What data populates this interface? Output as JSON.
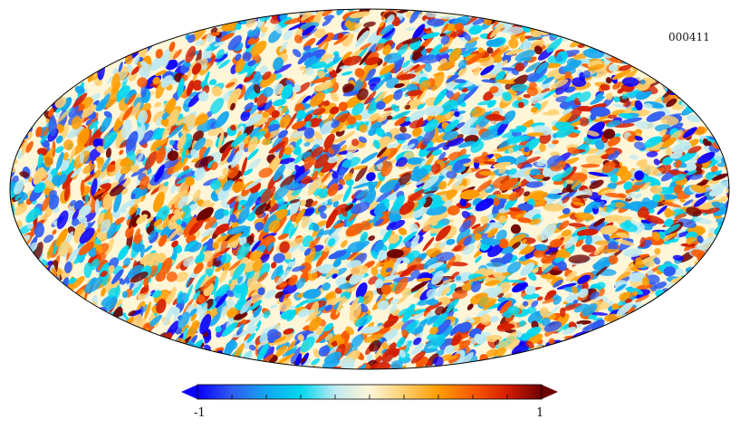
{
  "map": {
    "id_label": "000411",
    "projection": "mollweide",
    "colormap": "planck",
    "colormap_stops": [
      "#0a00ff",
      "#2f5cf2",
      "#14a6f0",
      "#00d7ef",
      "#bfe9f0",
      "#fff6d8",
      "#ffcf70",
      "#ff9d00",
      "#fa5a00",
      "#d41e00",
      "#6e0000"
    ]
  },
  "colorbar": {
    "min_label": "-1",
    "max_label": "1",
    "tick_count": 11,
    "extend": "both"
  }
}
